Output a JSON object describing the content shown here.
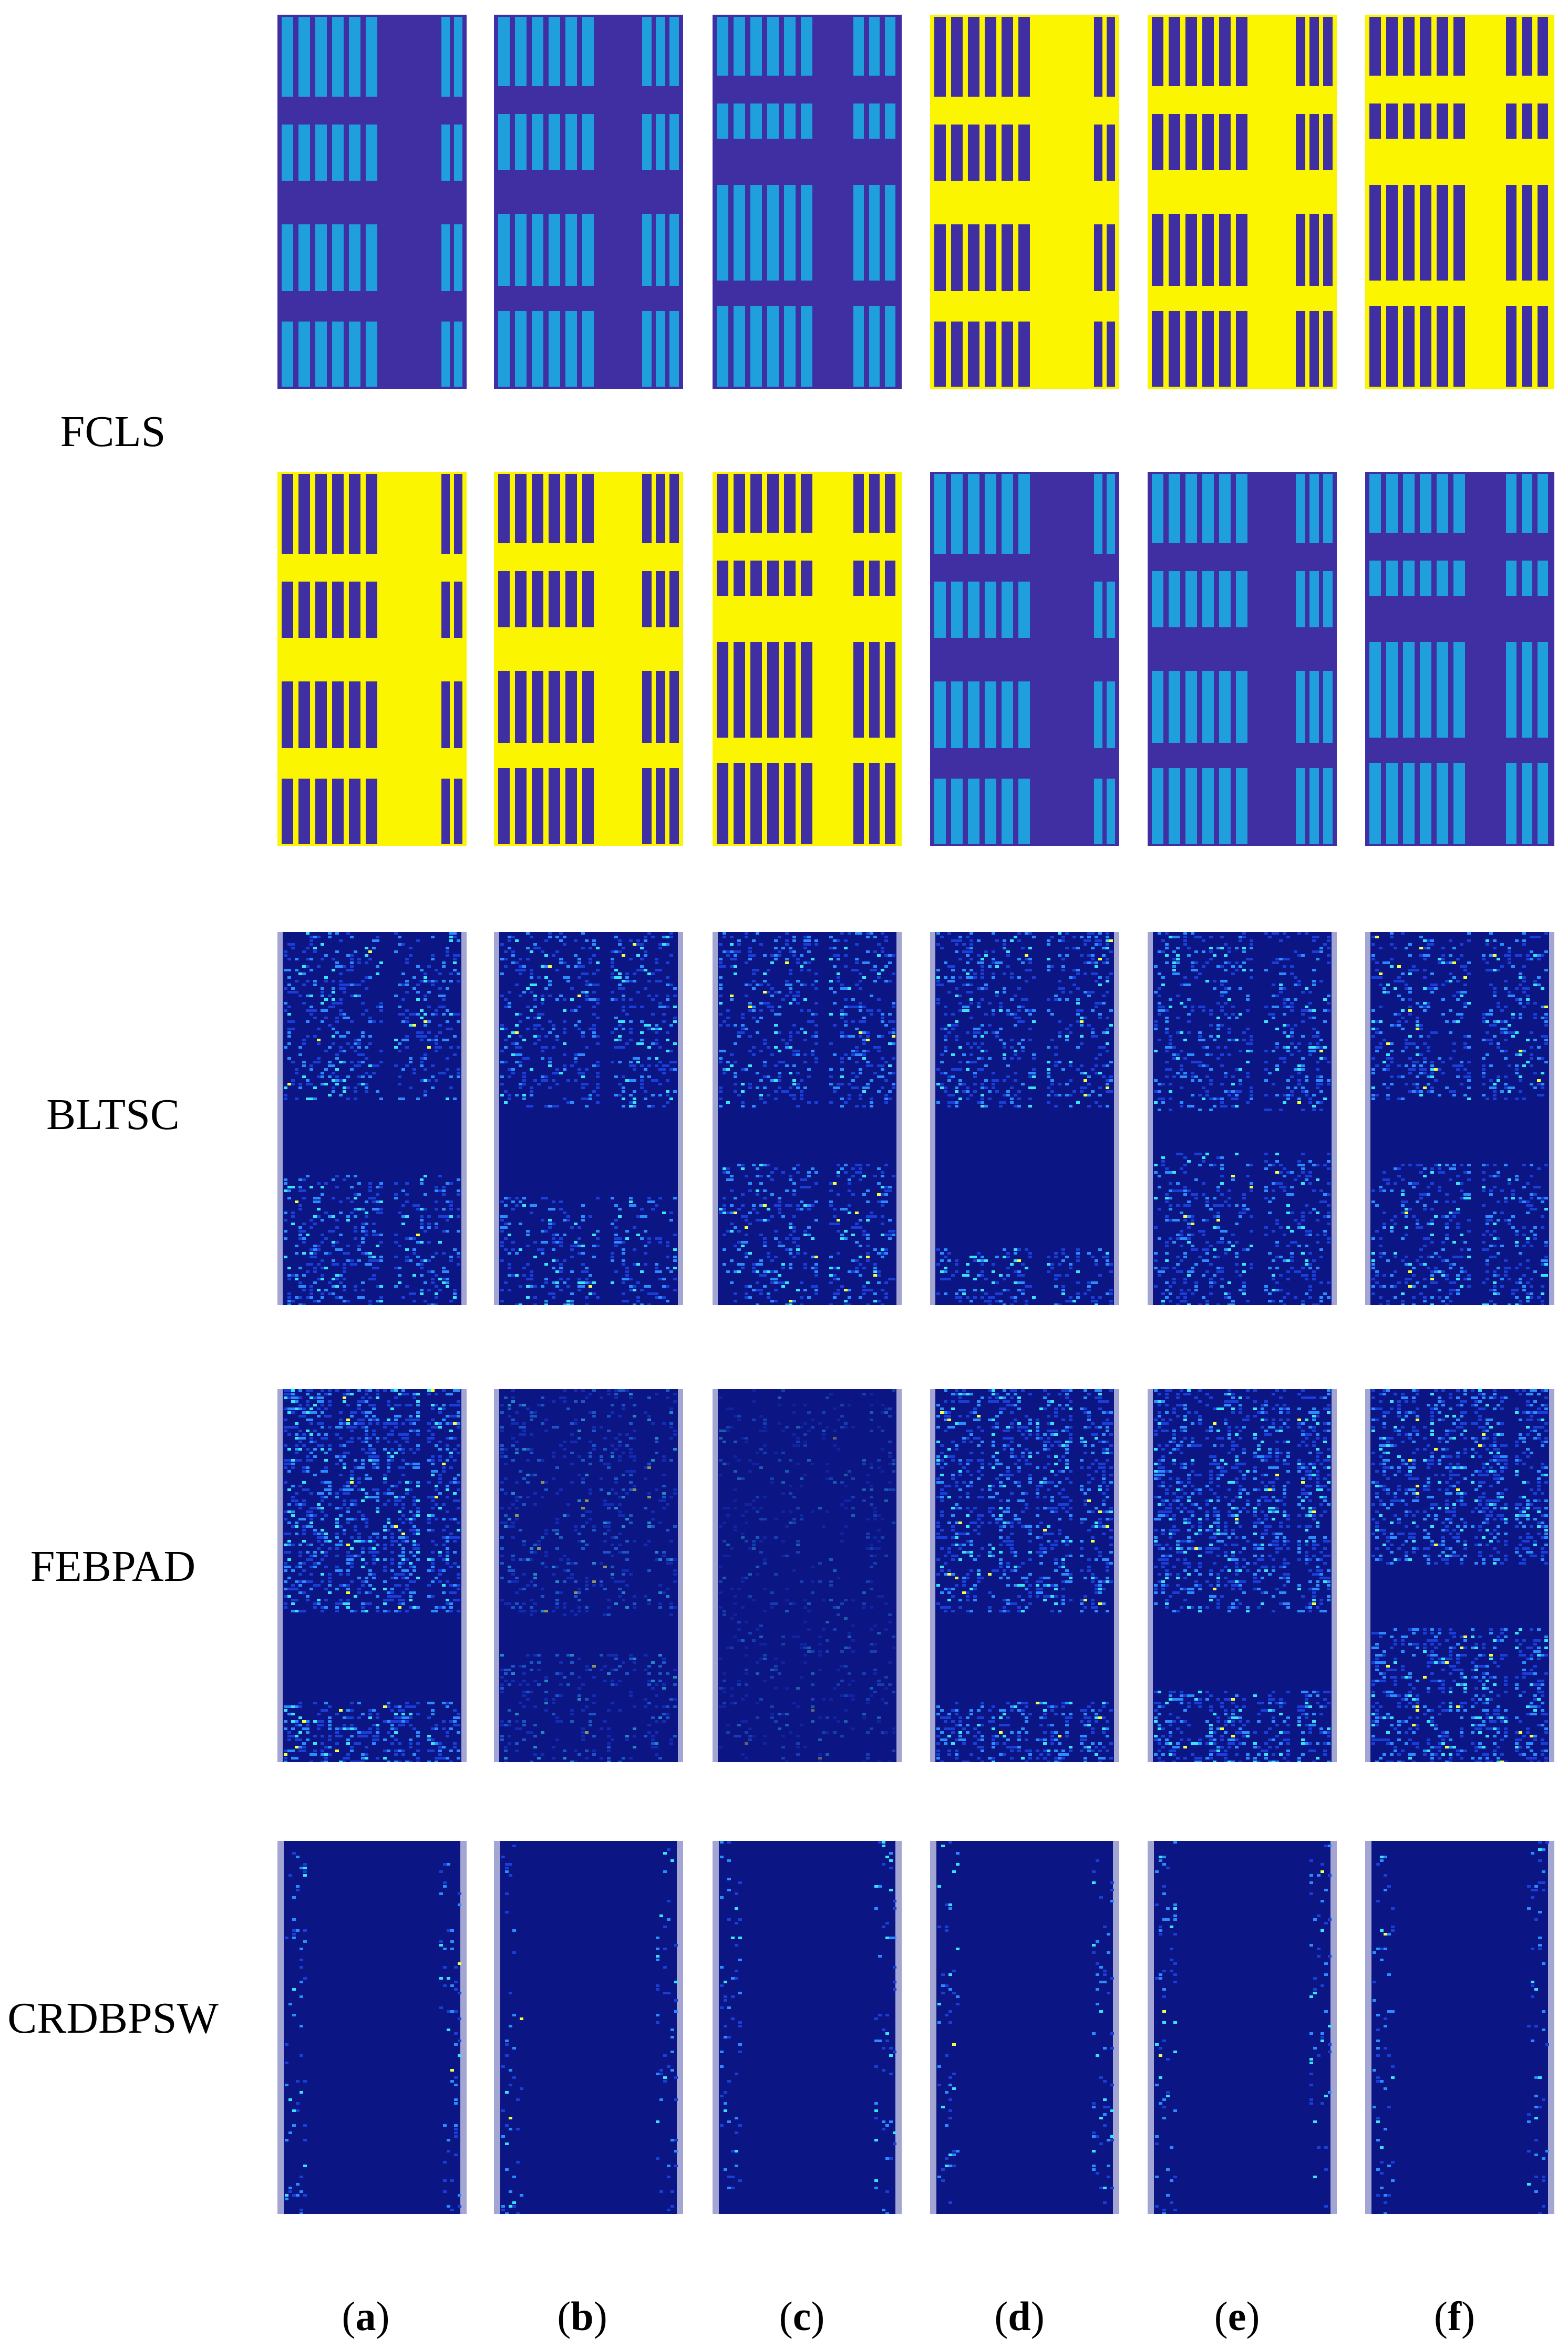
{
  "figure": {
    "rows": [
      {
        "label": "FCLS",
        "kind": "fcls"
      },
      {
        "label": "BLTSC",
        "kind": "heat"
      },
      {
        "label": "FEBPAD",
        "kind": "heat"
      },
      {
        "label": "CRDBPSW",
        "kind": "sparse"
      }
    ],
    "columns": [
      {
        "open": "(",
        "letter": "a",
        "close": ")"
      },
      {
        "open": "(",
        "letter": "b",
        "close": ")"
      },
      {
        "open": "(",
        "letter": "c",
        "close": ")"
      },
      {
        "open": "(",
        "letter": "d",
        "close": ")"
      },
      {
        "open": "(",
        "letter": "e",
        "close": ")"
      },
      {
        "open": "(",
        "letter": "f",
        "close": ")"
      }
    ],
    "colors": {
      "fcls_background": "#3f2fa3",
      "fcls_panel_low": "#1fa0dc",
      "fcls_panel_high": "#fbf500",
      "heat_background": "#0b1584",
      "heat_low": "#1a3ed8",
      "heat_mid": "#2a8cff",
      "heat_high": "#36e4ff",
      "heat_peak": "#f4ff40",
      "border_strip": "#c9c9e6"
    }
  }
}
